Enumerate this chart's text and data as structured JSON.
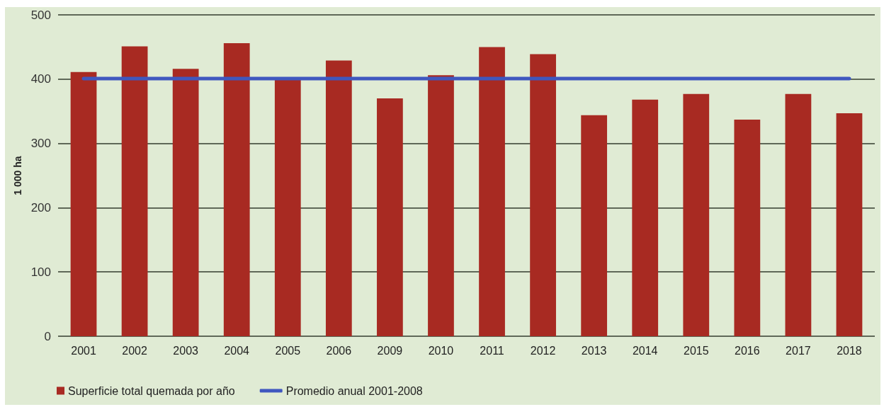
{
  "chart_data": {
    "type": "bar",
    "categories": [
      "2001",
      "2002",
      "2003",
      "2004",
      "2005",
      "2006",
      "2009",
      "2010",
      "2011",
      "2012",
      "2013",
      "2014",
      "2015",
      "2016",
      "2017",
      "2018"
    ],
    "ylabel": "1 000 ha",
    "ylim": [
      0,
      500
    ],
    "yticks": [
      0,
      100,
      200,
      300,
      400,
      500
    ],
    "grid": "y",
    "legend": "bottom left",
    "marker": "none",
    "series": [
      {
        "name": "Superficie total quemada por año",
        "color": "#a82a22",
        "values": [
          411,
          451,
          416,
          456,
          400,
          429,
          370,
          406,
          450,
          439,
          344,
          368,
          377,
          337,
          377,
          347
        ]
      },
      {
        "name": "Promedio anual 2001-2008",
        "type": "line",
        "color": "#3f57bf",
        "values": [
          401,
          401,
          401,
          401,
          401,
          401,
          401,
          401,
          401,
          401,
          401,
          401,
          401,
          401,
          401,
          401
        ]
      }
    ]
  }
}
